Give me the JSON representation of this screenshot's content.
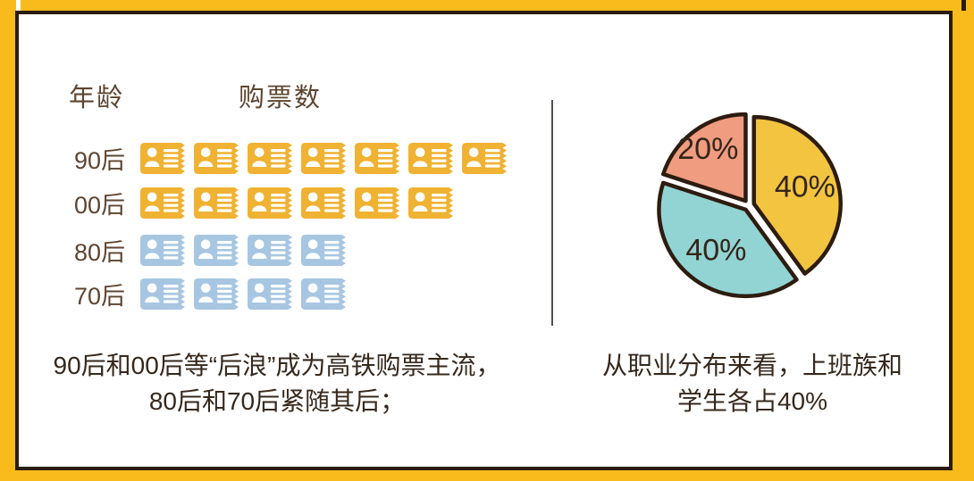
{
  "colors": {
    "frame_yellow": "#F9BA1C",
    "border_dark": "#2B1B10",
    "ticket_yellow": "#F0B232",
    "ticket_blue": "#A7C6E2",
    "pie_outline": "#2D1C10",
    "divider_gray": "#54504C",
    "label_brown": "#5E4530",
    "caption_dark": "#36281C"
  },
  "pictograph": {
    "col_age_label": "年龄",
    "col_tickets_label": "购票数",
    "icon": "id-ticket-icon",
    "rows": [
      {
        "label": "90后",
        "count": 7,
        "color": "#F0B232"
      },
      {
        "label": "00后",
        "count": 6,
        "color": "#F0B232"
      },
      {
        "label": "80后",
        "count": 4,
        "color": "#A7C6E2"
      },
      {
        "label": "70后",
        "count": 4,
        "color": "#A7C6E2"
      }
    ]
  },
  "chart_data": [
    {
      "type": "bar",
      "subtype": "pictogram",
      "categories": [
        "90后",
        "00后",
        "80后",
        "70后"
      ],
      "values": [
        7,
        6,
        4,
        4
      ],
      "xlabel": "购票数",
      "ylabel": "年龄",
      "icon": "id-ticket-icon",
      "icon_colors": [
        "#F0B232",
        "#F0B232",
        "#A7C6E2",
        "#A7C6E2"
      ]
    },
    {
      "type": "pie",
      "labels": [
        "40%",
        "40%",
        "20%"
      ],
      "values": [
        40,
        40,
        20
      ],
      "colors": [
        "#F3C440",
        "#92D4D4",
        "#F09C80"
      ],
      "start_angle_deg": 0,
      "direction": "clockwise",
      "exploded": true,
      "legend_position": "none"
    }
  ],
  "captions": {
    "left": [
      "90后和00后等“后浪”成为高铁购票主流，",
      "80后和70后紧随其后；"
    ],
    "right": [
      "从职业分布来看，上班族和",
      "学生各占40%"
    ]
  }
}
